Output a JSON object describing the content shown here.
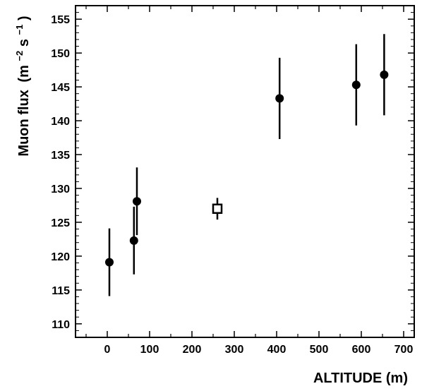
{
  "chart_data": {
    "type": "scatter",
    "xlabel": "ALTITUDE (m)",
    "ylabel": "Muon flux",
    "ylabel_unit_prefix": "(m",
    "ylabel_unit_exp1": "−2",
    "ylabel_unit_mid": " s",
    "ylabel_unit_exp2": "−1",
    "ylabel_unit_suffix": ")",
    "xlim": [
      -75,
      725
    ],
    "ylim": [
      108,
      157
    ],
    "x_ticks": [
      0,
      100,
      200,
      300,
      400,
      500,
      600,
      700
    ],
    "y_ticks": [
      110,
      115,
      120,
      125,
      130,
      135,
      140,
      145,
      150,
      155
    ],
    "x_tick_labels": [
      "0",
      "100",
      "200",
      "300",
      "400",
      "500",
      "600",
      "700"
    ],
    "y_tick_labels": [
      "110",
      "115",
      "120",
      "125",
      "130",
      "135",
      "140",
      "145",
      "150",
      "155"
    ],
    "grid": false,
    "series": [
      {
        "marker": "filled-circle",
        "points": [
          {
            "x": 5,
            "y": 119.1,
            "err": 5.0
          },
          {
            "x": 63,
            "y": 122.3,
            "err": 5.0
          },
          {
            "x": 70,
            "y": 128.1,
            "err": 5.0
          },
          {
            "x": 407,
            "y": 143.3,
            "err": 6.0
          },
          {
            "x": 588,
            "y": 145.3,
            "err": 6.0
          },
          {
            "x": 654,
            "y": 146.8,
            "err": 6.0
          }
        ]
      },
      {
        "marker": "open-square",
        "points": [
          {
            "x": 260,
            "y": 127.0,
            "err": 1.6
          }
        ]
      }
    ]
  }
}
